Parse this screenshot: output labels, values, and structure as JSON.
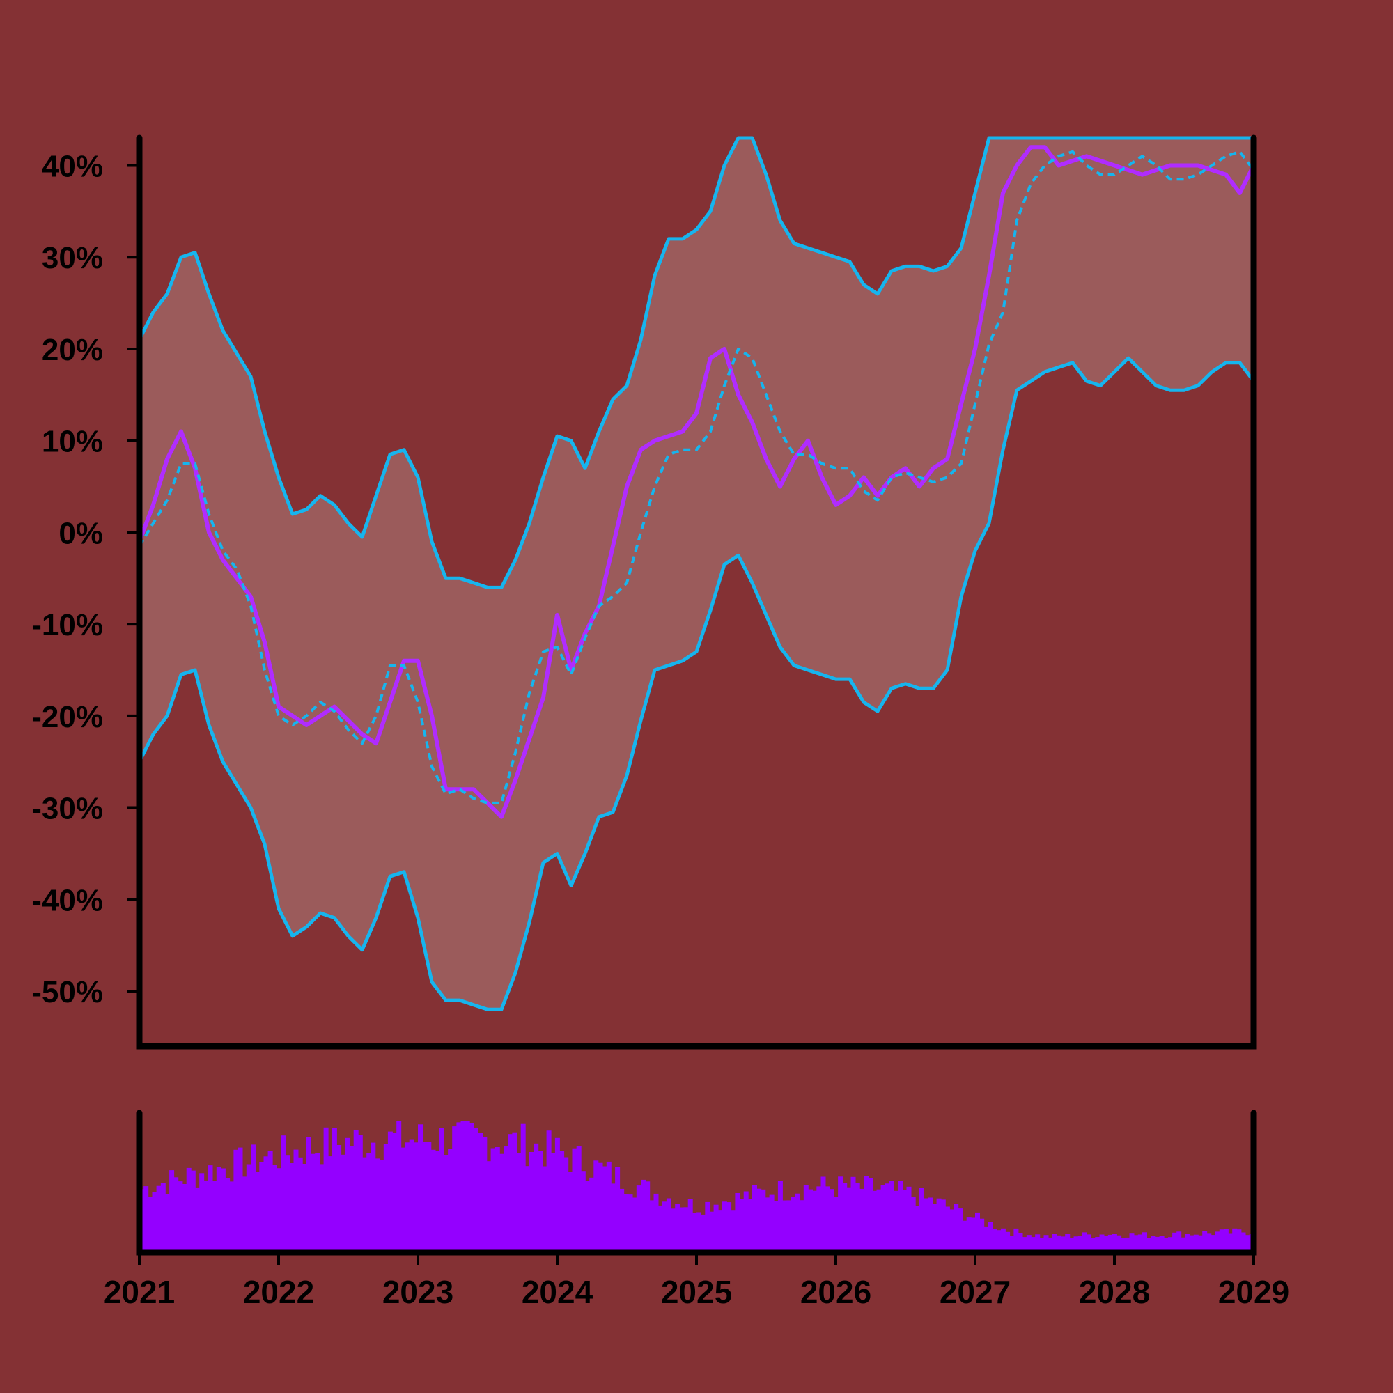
{
  "colors": {
    "background": "#843134",
    "band_fill": "#9b5b5b",
    "price": "#b02cff",
    "band_line": "#16b5ee",
    "volume": "#9400ff",
    "axis": "#000000"
  },
  "chart_data": [
    {
      "type": "line",
      "title": "",
      "xlabel": "",
      "ylabel": "",
      "xlim": [
        2021,
        2029
      ],
      "ylim": [
        -56,
        43
      ],
      "y_ticks": [
        -50,
        -40,
        -30,
        -20,
        -10,
        0,
        10,
        20,
        30,
        40
      ],
      "y_tick_labels": [
        "-50%",
        "-40%",
        "-30%",
        "-20%",
        "-10%",
        "0%",
        "10%",
        "20%",
        "30%",
        "40%"
      ],
      "grid": false,
      "legend": "none",
      "series": [
        {
          "role": "price",
          "x": [
            2021.0,
            2021.1,
            2021.2,
            2021.3,
            2021.4,
            2021.5,
            2021.6,
            2021.7,
            2021.8,
            2021.9,
            2022.0,
            2022.2,
            2022.4,
            2022.6,
            2022.7,
            2022.9,
            2023.0,
            2023.1,
            2023.2,
            2023.4,
            2023.6,
            2023.7,
            2023.9,
            2024.0,
            2024.1,
            2024.2,
            2024.3,
            2024.5,
            2024.6,
            2024.7,
            2024.9,
            2025.0,
            2025.1,
            2025.2,
            2025.3,
            2025.4,
            2025.5,
            2025.6,
            2025.7,
            2025.8,
            2025.9,
            2026.0,
            2026.1,
            2026.2,
            2026.3,
            2026.4,
            2026.5,
            2026.6,
            2026.7,
            2026.8,
            2026.9,
            2027.0,
            2027.1,
            2027.2,
            2027.3,
            2027.4,
            2027.5,
            2027.6,
            2027.8,
            2028.0,
            2028.2,
            2028.4,
            2028.6,
            2028.8,
            2028.9,
            2029.0
          ],
          "y": [
            -1,
            3,
            8,
            11,
            7,
            0,
            -3,
            -5,
            -7,
            -12,
            -19,
            -21,
            -19,
            -22,
            -23,
            -14,
            -14,
            -20,
            -28,
            -28,
            -31,
            -27,
            -18,
            -9,
            -15,
            -11,
            -8,
            5,
            9,
            10,
            11,
            13,
            19,
            20,
            15,
            12,
            8,
            5,
            8,
            10,
            6,
            3,
            4,
            6,
            4,
            6,
            7,
            5,
            7,
            8,
            14,
            20,
            28,
            37,
            40,
            42,
            42,
            40,
            41,
            40,
            39,
            40,
            40,
            39,
            37,
            40
          ]
        },
        {
          "role": "middle band (moving average)",
          "x": [
            2021.0,
            2021.1,
            2021.2,
            2021.3,
            2021.4,
            2021.5,
            2021.6,
            2021.7,
            2021.8,
            2021.9,
            2022.0,
            2022.1,
            2022.2,
            2022.3,
            2022.4,
            2022.5,
            2022.6,
            2022.7,
            2022.8,
            2022.9,
            2023.0,
            2023.1,
            2023.2,
            2023.3,
            2023.4,
            2023.5,
            2023.6,
            2023.7,
            2023.8,
            2023.9,
            2024.0,
            2024.1,
            2024.2,
            2024.3,
            2024.4,
            2024.5,
            2024.6,
            2024.7,
            2024.8,
            2024.9,
            2025.0,
            2025.1,
            2025.2,
            2025.3,
            2025.4,
            2025.5,
            2025.6,
            2025.7,
            2025.8,
            2025.9,
            2026.0,
            2026.1,
            2026.2,
            2026.3,
            2026.4,
            2026.5,
            2026.6,
            2026.7,
            2026.8,
            2026.9,
            2027.0,
            2027.1,
            2027.2,
            2027.3,
            2027.4,
            2027.5,
            2027.6,
            2027.7,
            2027.8,
            2027.9,
            2028.0,
            2028.1,
            2028.2,
            2028.3,
            2028.4,
            2028.5,
            2028.6,
            2028.7,
            2028.8,
            2028.9,
            2029.0
          ],
          "y": [
            -1.5,
            1,
            3.5,
            7.5,
            7.5,
            2,
            -2,
            -4,
            -8,
            -15,
            -20,
            -21,
            -20,
            -18.5,
            -19.5,
            -21.5,
            -23,
            -20,
            -14.5,
            -14.5,
            -18.5,
            -25.5,
            -28.5,
            -28,
            -29,
            -29.5,
            -29.5,
            -24,
            -17.5,
            -13,
            -12.5,
            -15.5,
            -11.5,
            -8,
            -7,
            -5.5,
            0,
            5,
            8.5,
            9,
            9,
            11,
            16,
            20,
            19,
            15,
            11,
            8.5,
            8.5,
            7.5,
            7,
            7,
            4.5,
            3.5,
            6,
            6.5,
            6,
            5.5,
            6,
            7.5,
            14,
            20.5,
            24,
            34,
            38,
            40,
            41,
            41.5,
            40,
            39,
            39,
            40,
            41,
            40,
            38.5,
            38.5,
            39,
            40,
            41,
            41.5,
            39.5
          ]
        },
        {
          "role": "upper band",
          "x": [
            2021.0,
            2021.1,
            2021.2,
            2021.3,
            2021.4,
            2021.5,
            2021.6,
            2021.7,
            2021.8,
            2021.9,
            2022.0,
            2022.1,
            2022.2,
            2022.3,
            2022.4,
            2022.5,
            2022.6,
            2022.7,
            2022.8,
            2022.9,
            2023.0,
            2023.1,
            2023.2,
            2023.3,
            2023.4,
            2023.5,
            2023.6,
            2023.7,
            2023.8,
            2023.9,
            2024.0,
            2024.1,
            2024.2,
            2024.3,
            2024.4,
            2024.5,
            2024.6,
            2024.7,
            2024.8,
            2024.9,
            2025.0,
            2025.1,
            2025.2,
            2025.3,
            2025.4,
            2025.5,
            2025.6,
            2025.7,
            2025.8,
            2025.9,
            2026.0,
            2026.1,
            2026.2,
            2026.3,
            2026.4,
            2026.5,
            2026.6,
            2026.7,
            2026.8,
            2026.9,
            2027.0,
            2027.1,
            2027.2,
            2027.3,
            2027.4,
            2027.5,
            2027.6,
            2027.7,
            2027.8,
            2027.9,
            2028.0,
            2028.1,
            2028.2,
            2028.3,
            2028.4,
            2028.5,
            2028.6,
            2028.7,
            2028.8,
            2028.9,
            2029.0
          ],
          "y": [
            21,
            24,
            26,
            30,
            30.5,
            26,
            22,
            19.5,
            17,
            11,
            6,
            2,
            2.5,
            4,
            3,
            1,
            -0.5,
            4,
            8.5,
            9,
            6,
            -1,
            -5,
            -5,
            -5.5,
            -6,
            -6,
            -3,
            1,
            6,
            10.5,
            10,
            7,
            11,
            14.5,
            16,
            21,
            28,
            32,
            32,
            33,
            35,
            40,
            43,
            43,
            39,
            34,
            31.5,
            31,
            30.5,
            30,
            29.5,
            27,
            26,
            28.5,
            29,
            29,
            28.5,
            29,
            31,
            37,
            43,
            43,
            43,
            43,
            43,
            43,
            43,
            43,
            43,
            43,
            43,
            43,
            43,
            43,
            43,
            43,
            43,
            43,
            43,
            43
          ]
        },
        {
          "role": "lower band",
          "x": [
            2021.0,
            2021.1,
            2021.2,
            2021.3,
            2021.4,
            2021.5,
            2021.6,
            2021.7,
            2021.8,
            2021.9,
            2022.0,
            2022.1,
            2022.2,
            2022.3,
            2022.4,
            2022.5,
            2022.6,
            2022.7,
            2022.8,
            2022.9,
            2023.0,
            2023.1,
            2023.2,
            2023.3,
            2023.4,
            2023.5,
            2023.6,
            2023.7,
            2023.8,
            2023.9,
            2024.0,
            2024.1,
            2024.2,
            2024.3,
            2024.4,
            2024.5,
            2024.6,
            2024.7,
            2024.8,
            2024.9,
            2025.0,
            2025.1,
            2025.2,
            2025.3,
            2025.4,
            2025.5,
            2025.6,
            2025.7,
            2025.8,
            2025.9,
            2026.0,
            2026.1,
            2026.2,
            2026.3,
            2026.4,
            2026.5,
            2026.6,
            2026.7,
            2026.8,
            2026.9,
            2027.0,
            2027.1,
            2027.2,
            2027.3,
            2027.4,
            2027.5,
            2027.6,
            2027.7,
            2027.8,
            2027.9,
            2028.0,
            2028.1,
            2028.2,
            2028.3,
            2028.4,
            2028.5,
            2028.6,
            2028.7,
            2028.8,
            2028.9,
            2029.0
          ],
          "y": [
            -25,
            -22,
            -20,
            -15.5,
            -15,
            -21,
            -25,
            -27.5,
            -30,
            -34,
            -41,
            -44,
            -43,
            -41.5,
            -42,
            -44,
            -45.5,
            -42,
            -37.5,
            -37,
            -42,
            -49,
            -51,
            -51,
            -51.5,
            -52,
            -52,
            -48,
            -42.5,
            -36,
            -35,
            -38.5,
            -35,
            -31,
            -30.5,
            -26.5,
            -20.5,
            -15,
            -14.5,
            -14,
            -13,
            -8.5,
            -3.5,
            -2.5,
            -5.5,
            -9,
            -12.5,
            -14.5,
            -15,
            -15.5,
            -16,
            -16,
            -18.5,
            -19.5,
            -17,
            -16.5,
            -17,
            -17,
            -15,
            -7,
            -2,
            1,
            9,
            15.5,
            16.5,
            17.5,
            18,
            18.5,
            16.5,
            16,
            17.5,
            19,
            17.5,
            16,
            15.5,
            15.5,
            16,
            17.5,
            18.5,
            18.5,
            16.5
          ]
        }
      ]
    },
    {
      "type": "bar",
      "title": "",
      "role": "volume",
      "xlim": [
        2021,
        2029
      ],
      "x": [
        2021.0,
        2021.25,
        2021.5,
        2021.75,
        2022.0,
        2022.25,
        2022.5,
        2022.75,
        2023.0,
        2023.25,
        2023.5,
        2023.75,
        2024.0,
        2024.25,
        2024.5,
        2024.75,
        2025.0,
        2025.25,
        2025.5,
        2025.75,
        2026.0,
        2026.25,
        2026.5,
        2026.75,
        2027.0,
        2027.25,
        2027.5,
        2027.75,
        2028.0,
        2028.25,
        2028.5,
        2028.75,
        2029.0
      ],
      "values": [
        0.48,
        0.55,
        0.62,
        0.68,
        0.74,
        0.8,
        0.84,
        0.86,
        0.86,
        0.87,
        0.86,
        0.83,
        0.76,
        0.66,
        0.54,
        0.43,
        0.35,
        0.4,
        0.46,
        0.49,
        0.5,
        0.49,
        0.45,
        0.37,
        0.26,
        0.16,
        0.12,
        0.13,
        0.14,
        0.13,
        0.14,
        0.15,
        0.16
      ]
    }
  ]
}
